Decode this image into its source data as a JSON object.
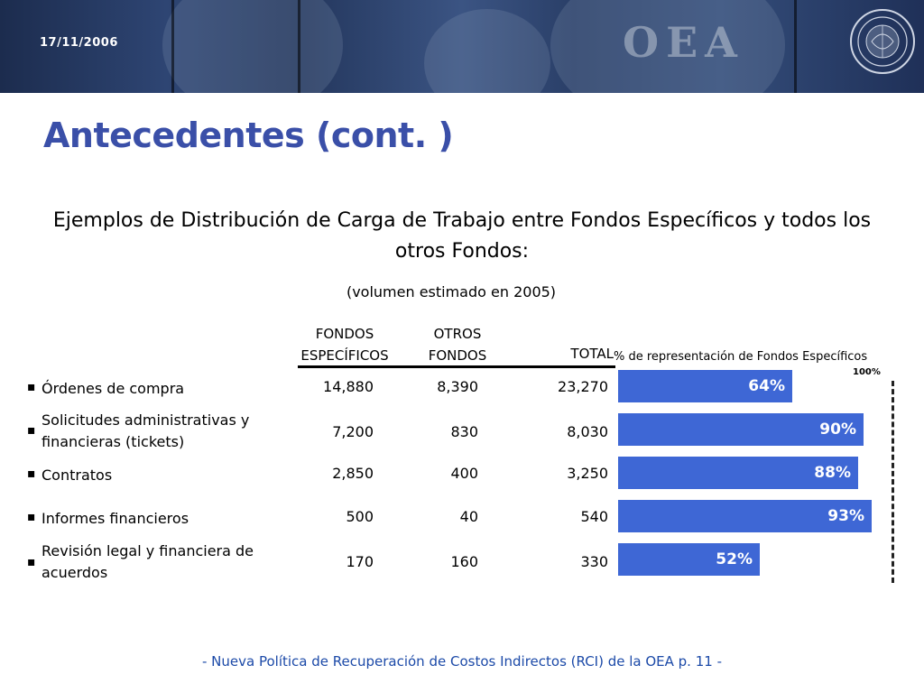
{
  "header": {
    "date": "17/11/2006",
    "logo_text": "OEA"
  },
  "page": {
    "title": "Antecedentes (cont. )",
    "subtitle": "Ejemplos de Distribución de Carga de Trabajo entre Fondos Específicos y todos los otros Fondos:",
    "note": "(volumen estimado en 2005)"
  },
  "table": {
    "columns": {
      "fondos_line1": "FONDOS",
      "fondos_line2": "ESPECÍFICOS",
      "otros_line1": "OTROS",
      "otros_line2": "FONDOS",
      "total": "TOTAL",
      "representation": "% de representación de Fondos Específicos"
    },
    "bullet": "▪",
    "rows": [
      {
        "label": "Órdenes de compra",
        "fondos": "14,880",
        "otros": "8,390",
        "total": "23,270",
        "pct_label": "64%"
      },
      {
        "label": "Solicitudes administrativas y financieras (tickets)",
        "fondos": "7,200",
        "otros": "830",
        "total": "8,030",
        "pct_label": "90%"
      },
      {
        "label": "Contratos",
        "fondos": "2,850",
        "otros": "400",
        "total": "3,250",
        "pct_label": "88%"
      },
      {
        "label": "Informes financieros",
        "fondos": "500",
        "otros": "40",
        "total": "540",
        "pct_label": "93%"
      },
      {
        "label": "Revisión legal y financiera de acuerdos",
        "fondos": "170",
        "otros": "160",
        "total": "330",
        "pct_label": "52%"
      }
    ]
  },
  "chart_data": {
    "type": "bar",
    "orientation": "horizontal",
    "title": "% de representación de Fondos Específicos",
    "categories": [
      "Órdenes de compra",
      "Solicitudes administrativas y financieras (tickets)",
      "Contratos",
      "Informes financieros",
      "Revisión legal y financiera de acuerdos"
    ],
    "values": [
      64,
      90,
      88,
      93,
      52
    ],
    "reference_label": "100%",
    "reference_value": 100,
    "xlim": [
      0,
      100
    ],
    "bar_color": "#3e67d5"
  },
  "footer": {
    "text": "-  Nueva Política de Recuperación de Costos Indirectos (RCI) de la OEA p. 11 -"
  },
  "colors": {
    "title": "#3a4fa8",
    "footer": "#1c4aa8",
    "bar": "#3e67d5"
  }
}
